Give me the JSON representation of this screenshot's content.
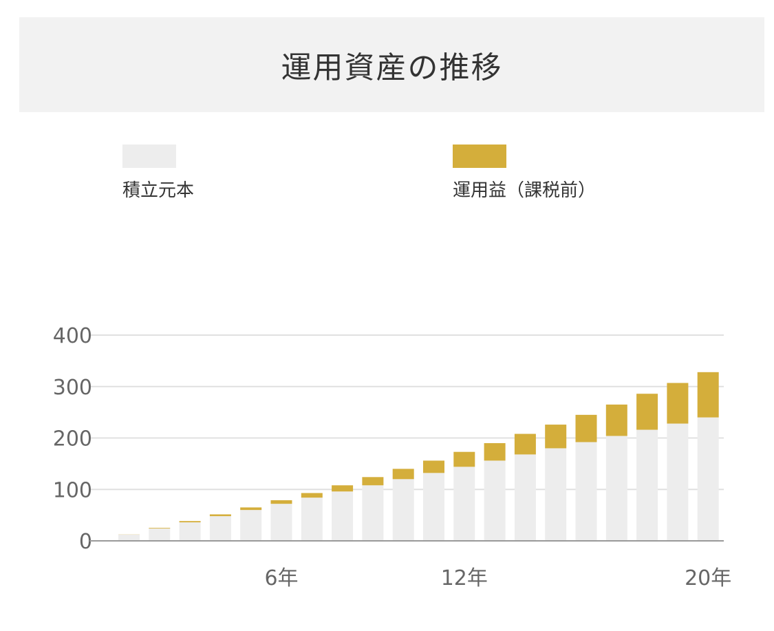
{
  "title": "運用資産の推移",
  "legend": {
    "principal_label": "積立元本",
    "gain_label": "運用益（課税前）"
  },
  "colors": {
    "principal": "#ededed",
    "gain": "#d4ae3b",
    "grid": "#e0e0e0",
    "baseline": "#999999"
  },
  "chart_data": {
    "type": "bar",
    "stacked": true,
    "title": "運用資産の推移",
    "xlabel": "",
    "ylabel": "",
    "ylim": [
      0,
      400
    ],
    "yticks": [
      0,
      100,
      200,
      300,
      400
    ],
    "x_tick_labels": [
      {
        "category": 6,
        "label": "6年"
      },
      {
        "category": 12,
        "label": "12年"
      },
      {
        "category": 20,
        "label": "20年"
      }
    ],
    "categories": [
      1,
      2,
      3,
      4,
      5,
      6,
      7,
      8,
      9,
      10,
      11,
      12,
      13,
      14,
      15,
      16,
      17,
      18,
      19,
      20
    ],
    "grid": true,
    "legend_position": "top",
    "series": [
      {
        "name": "積立元本",
        "color": "#ededed",
        "values": [
          12,
          24,
          36,
          48,
          60,
          72,
          84,
          96,
          108,
          120,
          132,
          144,
          156,
          168,
          180,
          192,
          204,
          216,
          228,
          240
        ]
      },
      {
        "name": "運用益（課税前）",
        "color": "#d4ae3b",
        "values": [
          0.3,
          1.2,
          2.5,
          3.5,
          5,
          7,
          9,
          12,
          16,
          20,
          24,
          29,
          34,
          40,
          46,
          53,
          61,
          70,
          79,
          88
        ]
      }
    ]
  }
}
